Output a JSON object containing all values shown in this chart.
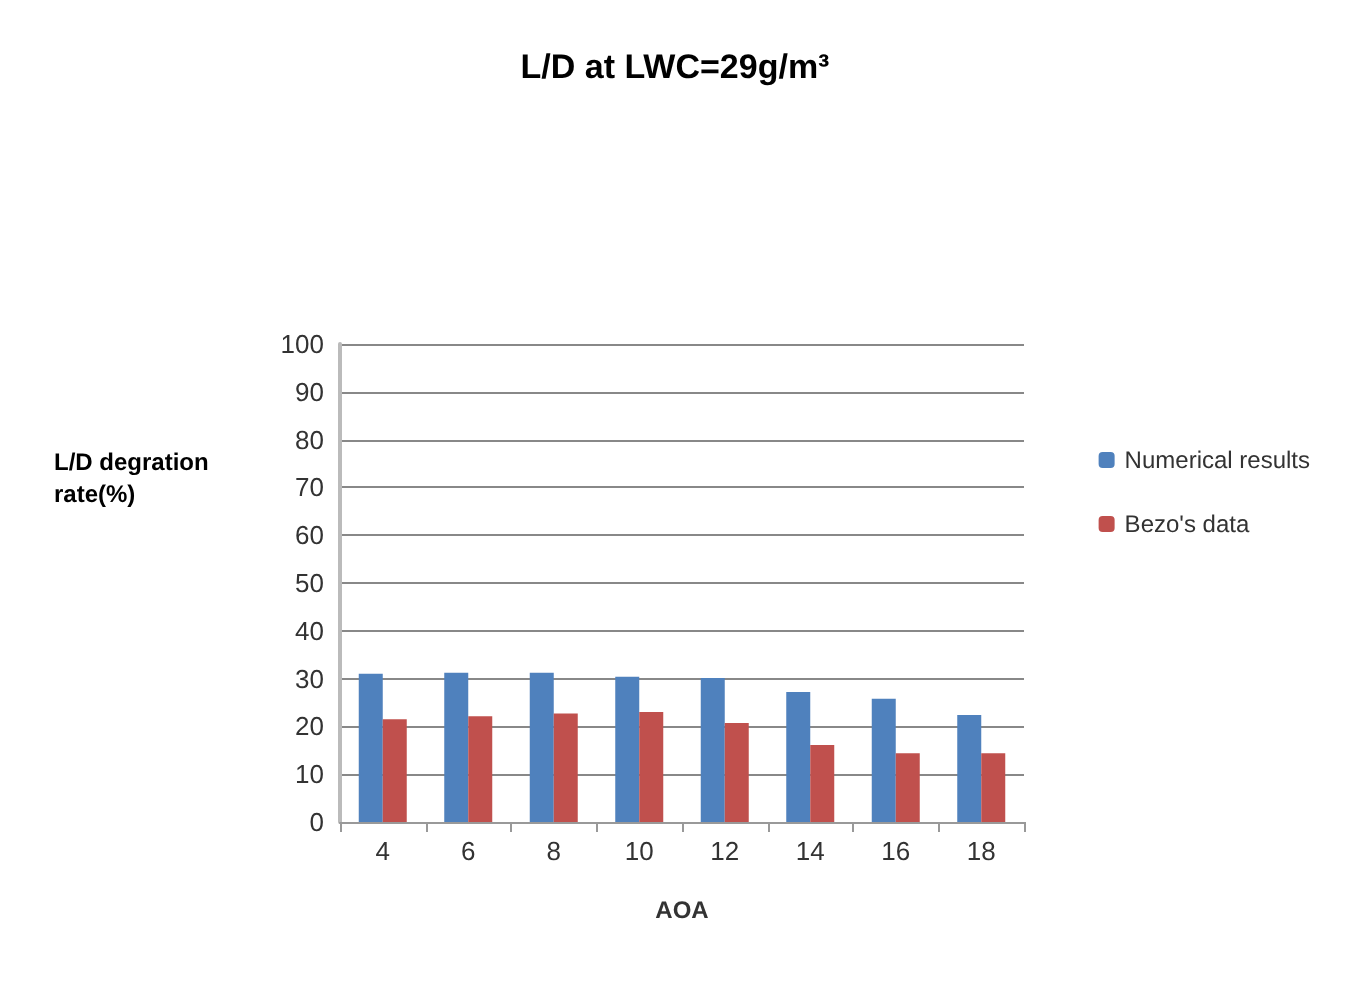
{
  "chart_data": {
    "type": "bar",
    "title": "L/D at LWC=29g/m³",
    "xlabel": "AOA",
    "ylabel": "L/D degration rate(%)",
    "categories": [
      "4",
      "6",
      "8",
      "10",
      "12",
      "14",
      "16",
      "18"
    ],
    "series": [
      {
        "name": "Numerical results",
        "color": "#4f81bd",
        "values": [
          31.0,
          31.2,
          31.2,
          30.4,
          30.1,
          27.2,
          25.8,
          22.4
        ]
      },
      {
        "name": "Bezo's data",
        "color": "#c0504d",
        "values": [
          21.5,
          22.1,
          22.7,
          23.0,
          20.7,
          16.1,
          14.4,
          14.4
        ]
      }
    ],
    "ylim": [
      0,
      100
    ],
    "yticks": [
      0,
      10,
      20,
      30,
      40,
      50,
      60,
      70,
      80,
      90,
      100
    ],
    "grid": "y",
    "legend": "right"
  }
}
